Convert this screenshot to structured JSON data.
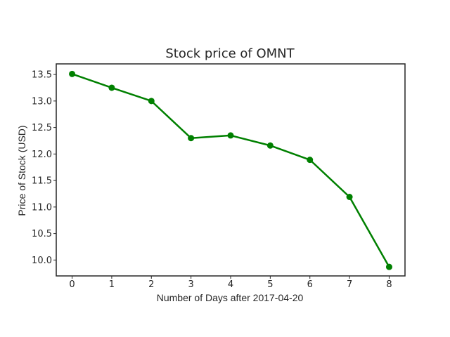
{
  "chart_data": {
    "type": "line",
    "title": "Stock price of OMNT",
    "xlabel": "Number of Days after 2017-04-20",
    "ylabel": "Price of Stock (USD)",
    "x": [
      0,
      1,
      2,
      3,
      4,
      5,
      6,
      7,
      8
    ],
    "series": [
      {
        "values": [
          13.51,
          13.25,
          13.0,
          12.3,
          12.35,
          12.16,
          11.89,
          11.19,
          9.87
        ],
        "color": "#008000",
        "marker": "circle"
      }
    ],
    "xlim": [
      -0.4,
      8.4
    ],
    "ylim": [
      9.7,
      13.7
    ],
    "xticks": [
      0,
      1,
      2,
      3,
      4,
      5,
      6,
      7,
      8
    ],
    "xtick_labels": [
      "0",
      "1",
      "2",
      "3",
      "4",
      "5",
      "6",
      "7",
      "8"
    ],
    "yticks": [
      10.0,
      10.5,
      11.0,
      11.5,
      12.0,
      12.5,
      13.0,
      13.5
    ],
    "ytick_labels": [
      "10.0",
      "10.5",
      "11.0",
      "11.5",
      "12.0",
      "12.5",
      "13.0",
      "13.5"
    ],
    "grid": false,
    "legend": "none"
  }
}
